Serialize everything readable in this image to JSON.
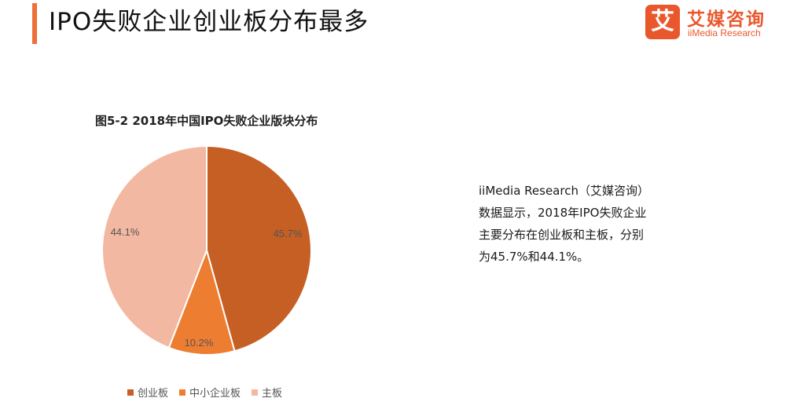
{
  "header": {
    "title": "IPO失败企业创业板分布最多",
    "accent_color": "#ee6f3a"
  },
  "logo": {
    "glyph": "艾",
    "name_cn": "艾媒咨询",
    "name_en": "iiMedia Research",
    "color": "#e9582d"
  },
  "chart_data": {
    "type": "pie",
    "title": "图5-2 2018年中国IPO失败企业版块分布",
    "categories": [
      "创业板",
      "中小企业板",
      "主板"
    ],
    "values": [
      45.7,
      10.2,
      44.1
    ],
    "labels": [
      "45.7%",
      "10.2%",
      "44.1%"
    ],
    "colors": [
      "#c55f23",
      "#ed7d31",
      "#f3b8a2"
    ],
    "start_angle": "12 o'clock",
    "direction": "clockwise",
    "legend_position": "bottom"
  },
  "description": {
    "lines": [
      "iiMedia Research（艾媒咨询）",
      "数据显示，2018年IPO失败企业",
      "主要分布在创业板和主板，分别",
      "为45.7%和44.1%。"
    ]
  }
}
